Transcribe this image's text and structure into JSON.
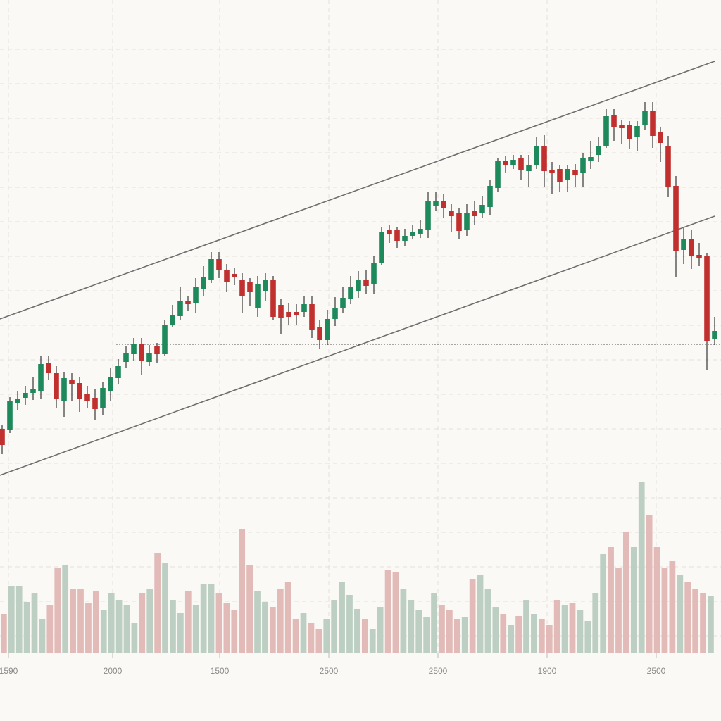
{
  "chart_data": {
    "type": "candlestick",
    "title": "",
    "xlabel": "",
    "ylabel": "",
    "grid": true,
    "x_tick_labels": [
      "1590",
      "2000",
      "1500",
      "2500",
      "2500",
      "1900",
      "2500"
    ],
    "y_range": [
      300,
      1000
    ],
    "candles": [
      [
        391,
        396,
        355,
        368
      ],
      [
        390,
        436,
        385,
        430
      ],
      [
        427,
        445,
        418,
        434
      ],
      [
        435,
        452,
        425,
        442
      ],
      [
        442,
        465,
        432,
        448
      ],
      [
        445,
        495,
        433,
        483
      ],
      [
        485,
        495,
        460,
        470
      ],
      [
        470,
        480,
        420,
        433
      ],
      [
        431,
        472,
        408,
        463
      ],
      [
        461,
        470,
        430,
        455
      ],
      [
        456,
        465,
        415,
        433
      ],
      [
        440,
        452,
        420,
        430
      ],
      [
        435,
        448,
        404,
        419
      ],
      [
        420,
        458,
        410,
        449
      ],
      [
        444,
        478,
        430,
        465
      ],
      [
        463,
        490,
        455,
        480
      ],
      [
        486,
        508,
        478,
        498
      ],
      [
        497,
        520,
        488,
        511
      ],
      [
        511,
        520,
        467,
        487
      ],
      [
        486,
        510,
        480,
        498
      ],
      [
        508,
        513,
        485,
        497
      ],
      [
        497,
        545,
        495,
        538
      ],
      [
        538,
        567,
        535,
        553
      ],
      [
        551,
        592,
        545,
        572
      ],
      [
        573,
        580,
        558,
        568
      ],
      [
        569,
        605,
        555,
        592
      ],
      [
        589,
        622,
        580,
        607
      ],
      [
        603,
        642,
        598,
        632
      ],
      [
        632,
        642,
        605,
        617
      ],
      [
        616,
        625,
        585,
        600
      ],
      [
        611,
        620,
        595,
        607
      ],
      [
        603,
        612,
        555,
        579
      ],
      [
        600,
        605,
        565,
        585
      ],
      [
        563,
        608,
        550,
        597
      ],
      [
        587,
        612,
        572,
        602
      ],
      [
        602,
        608,
        545,
        550
      ],
      [
        567,
        575,
        525,
        548
      ],
      [
        557,
        570,
        538,
        550
      ],
      [
        557,
        568,
        538,
        552
      ],
      [
        557,
        580,
        550,
        568
      ],
      [
        568,
        580,
        520,
        531
      ],
      [
        535,
        545,
        505,
        517
      ],
      [
        517,
        560,
        510,
        547
      ],
      [
        547,
        578,
        537,
        563
      ],
      [
        562,
        592,
        555,
        577
      ],
      [
        576,
        608,
        568,
        592
      ],
      [
        587,
        615,
        577,
        603
      ],
      [
        603,
        617,
        583,
        594
      ],
      [
        596,
        637,
        583,
        627
      ],
      [
        626,
        678,
        624,
        671
      ],
      [
        673,
        680,
        655,
        667
      ],
      [
        673,
        678,
        648,
        658
      ],
      [
        658,
        675,
        650,
        665
      ],
      [
        665,
        680,
        660,
        670
      ],
      [
        667,
        688,
        662,
        675
      ],
      [
        673,
        727,
        662,
        714
      ],
      [
        707,
        728,
        700,
        715
      ],
      [
        715,
        725,
        690,
        705
      ],
      [
        701,
        710,
        670,
        693
      ],
      [
        698,
        705,
        660,
        672
      ],
      [
        673,
        710,
        665,
        698
      ],
      [
        700,
        715,
        680,
        693
      ],
      [
        697,
        722,
        690,
        709
      ],
      [
        706,
        745,
        695,
        736
      ],
      [
        733,
        775,
        728,
        772
      ],
      [
        771,
        778,
        755,
        766
      ],
      [
        766,
        780,
        760,
        773
      ],
      [
        775,
        780,
        745,
        758
      ],
      [
        757,
        780,
        735,
        766
      ],
      [
        766,
        805,
        760,
        793
      ],
      [
        793,
        808,
        735,
        757
      ],
      [
        758,
        770,
        725,
        755
      ],
      [
        760,
        765,
        728,
        742
      ],
      [
        745,
        765,
        728,
        760
      ],
      [
        759,
        767,
        735,
        752
      ],
      [
        754,
        782,
        735,
        775
      ],
      [
        772,
        800,
        760,
        777
      ],
      [
        780,
        805,
        770,
        792
      ],
      [
        793,
        845,
        790,
        835
      ],
      [
        836,
        845,
        800,
        820
      ],
      [
        823,
        830,
        795,
        818
      ],
      [
        823,
        828,
        788,
        803
      ],
      [
        806,
        828,
        785,
        821
      ],
      [
        822,
        855,
        815,
        843
      ],
      [
        843,
        855,
        790,
        807
      ],
      [
        812,
        820,
        770,
        797
      ],
      [
        792,
        807,
        720,
        734
      ],
      [
        736,
        750,
        607,
        643
      ],
      [
        645,
        676,
        625,
        660
      ],
      [
        660,
        673,
        618,
        636
      ],
      [
        638,
        655,
        622,
        634
      ],
      [
        637,
        640,
        475,
        516
      ],
      [
        518,
        550,
        510,
        530
      ]
    ],
    "volume": [
      55,
      95,
      95,
      72,
      85,
      48,
      68,
      120,
      125,
      90,
      90,
      70,
      88,
      60,
      85,
      75,
      68,
      42,
      85,
      90,
      142,
      127,
      75,
      57,
      88,
      68,
      98,
      98,
      85,
      70,
      60,
      175,
      125,
      88,
      72,
      65,
      90,
      100,
      48,
      57,
      42,
      33,
      48,
      75,
      100,
      82,
      62,
      48,
      33,
      65,
      118,
      115,
      90,
      75,
      60,
      50,
      85,
      68,
      60,
      48,
      50,
      105,
      110,
      90,
      65,
      55,
      40,
      52,
      75,
      55,
      48,
      40,
      75,
      68,
      70,
      60,
      45,
      85,
      140,
      150,
      120,
      172,
      150,
      243,
      195,
      150,
      120,
      130,
      110,
      100,
      90,
      85,
      80
    ],
    "trendlines": [
      {
        "style": "solid",
        "from": [
          0,
          547
        ],
        "to": [
          92,
          913
        ]
      },
      {
        "style": "solid",
        "from": [
          0,
          325
        ],
        "to": [
          92,
          693
        ]
      },
      {
        "style": "dotted",
        "from": [
          15,
          511
        ],
        "to": [
          93,
          511
        ]
      }
    ],
    "colors": {
      "up": "#1e8a5c",
      "down": "#c1302e",
      "volume_up": "#bccfc2",
      "volume_down": "#e2bab7",
      "grid": "#e4e1dc",
      "trendline": "#6e6e6e",
      "background": "#fbf9f6"
    }
  }
}
